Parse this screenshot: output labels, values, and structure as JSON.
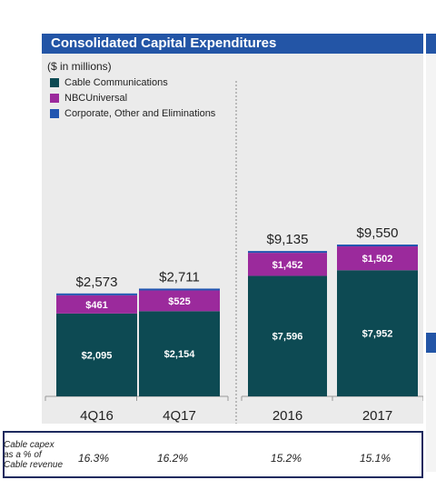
{
  "title": "Consolidated Capital Expenditures",
  "unit_label": "($ in millions)",
  "colors": {
    "header": "#2355a6",
    "cable": "#0d4a53",
    "nbcu": "#9b2a9c",
    "corporate": "#2155b0",
    "panel": "#ebebeb",
    "footer_border": "#1d2a5e"
  },
  "legend": [
    {
      "label": "Cable Communications",
      "color": "#0d4a53"
    },
    {
      "label": "NBCUniversal",
      "color": "#9b2a9c"
    },
    {
      "label": "Corporate, Other and Eliminations",
      "color": "#2155b0"
    }
  ],
  "footer": {
    "label_lines": [
      "Cable capex",
      "as a % of",
      "Cable revenue"
    ],
    "values": [
      "16.3%",
      "16.2%",
      "15.2%",
      "15.1%"
    ]
  },
  "chart_data": [
    {
      "type": "bar",
      "stacked": true,
      "categories": [
        "4Q16",
        "4Q17"
      ],
      "series": [
        {
          "name": "Cable Communications",
          "values": [
            2095,
            2154
          ],
          "labels": [
            "$2,095",
            "$2,154"
          ]
        },
        {
          "name": "NBCUniversal",
          "values": [
            461,
            525
          ],
          "labels": [
            "$461",
            "$525"
          ]
        },
        {
          "name": "Corporate, Other and Eliminations",
          "values": [
            17,
            32
          ],
          "labels": [
            "",
            ""
          ]
        }
      ],
      "totals": [
        "$2,573",
        "$2,711"
      ]
    },
    {
      "type": "bar",
      "stacked": true,
      "categories": [
        "2016",
        "2017"
      ],
      "series": [
        {
          "name": "Cable Communications",
          "values": [
            7596,
            7952
          ],
          "labels": [
            "$7,596",
            "$7,952"
          ]
        },
        {
          "name": "NBCUniversal",
          "values": [
            1452,
            1502
          ],
          "labels": [
            "$1,452",
            "$1,502"
          ]
        },
        {
          "name": "Corporate, Other and Eliminations",
          "values": [
            87,
            96
          ],
          "labels": [
            "",
            ""
          ]
        }
      ],
      "totals": [
        "$9,135",
        "$9,550"
      ]
    }
  ]
}
